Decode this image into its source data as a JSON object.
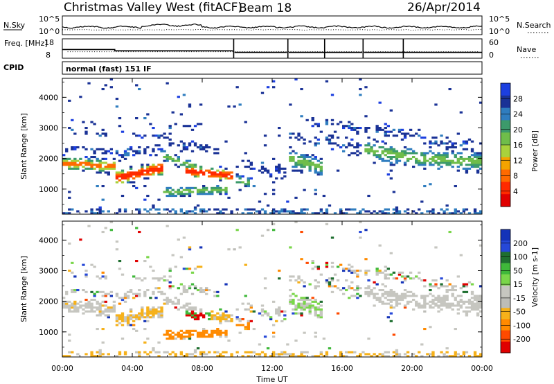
{
  "header": {
    "title": "Christmas Valley West (fitACF)",
    "beam": "Beam 18",
    "date": "26/Apr/2014"
  },
  "param_panels": {
    "nsky_label": "N.Sky",
    "nsearch_label": "N.Search",
    "noise_ticks_left": [
      "10^5",
      "10^0"
    ],
    "noise_ticks_right": [
      "10^5",
      "10^0"
    ],
    "freq_label": "Freq. [MHz]",
    "freq_ticks": [
      "18",
      "8"
    ],
    "nave_label": "Nave",
    "nave_ticks": [
      "60",
      "0"
    ],
    "cpid_label": "CPID",
    "cpid_value": "normal (fast) 151 IF"
  },
  "colors": {
    "power": [
      "#1c3fe0",
      "#1a3296",
      "#2f7dbf",
      "#3c9a6b",
      "#6fbd4a",
      "#a9d23c",
      "#f5a300",
      "#ff6a00",
      "#ff2a00",
      "#e00000"
    ],
    "velocity": [
      "#1433b8",
      "#2648d8",
      "#1f6f30",
      "#3fb83a",
      "#7ad64a",
      "#c6c6c0",
      "#bdbdb8",
      "#f6b11a",
      "#ff8a00",
      "#ff4a00",
      "#e00000"
    ]
  },
  "chart_data": [
    {
      "type": "heatmap",
      "title": "Power",
      "xlabel": "Time UT",
      "ylabel": "Slant Range [km]",
      "xlim": [
        "00:00",
        "24:00"
      ],
      "ylim": [
        180,
        4620
      ],
      "x_ticks": [
        "00:00",
        "04:00",
        "08:00",
        "12:00",
        "16:00",
        "20:00",
        "00:00"
      ],
      "y_ticks": [
        "1000",
        "2000",
        "3000",
        "4000"
      ],
      "colorbar_label": "Power [dB]",
      "colorbar_ticks": [
        "28",
        "24",
        "20",
        "16",
        "12",
        "8",
        "4"
      ]
    },
    {
      "type": "heatmap",
      "title": "Velocity",
      "xlabel": "Time UT",
      "ylabel": "Slant Range [km]",
      "xlim": [
        "00:00",
        "24:00"
      ],
      "ylim": [
        180,
        4620
      ],
      "x_ticks": [
        "00:00",
        "04:00",
        "08:00",
        "12:00",
        "16:00",
        "20:00",
        "00:00"
      ],
      "y_ticks": [
        "1000",
        "2000",
        "3000",
        "4000"
      ],
      "colorbar_label": "Velocity [m s-1]",
      "colorbar_ticks": [
        "200",
        "100",
        "50",
        "15",
        "-15",
        "-50",
        "-100",
        "-200"
      ]
    }
  ]
}
